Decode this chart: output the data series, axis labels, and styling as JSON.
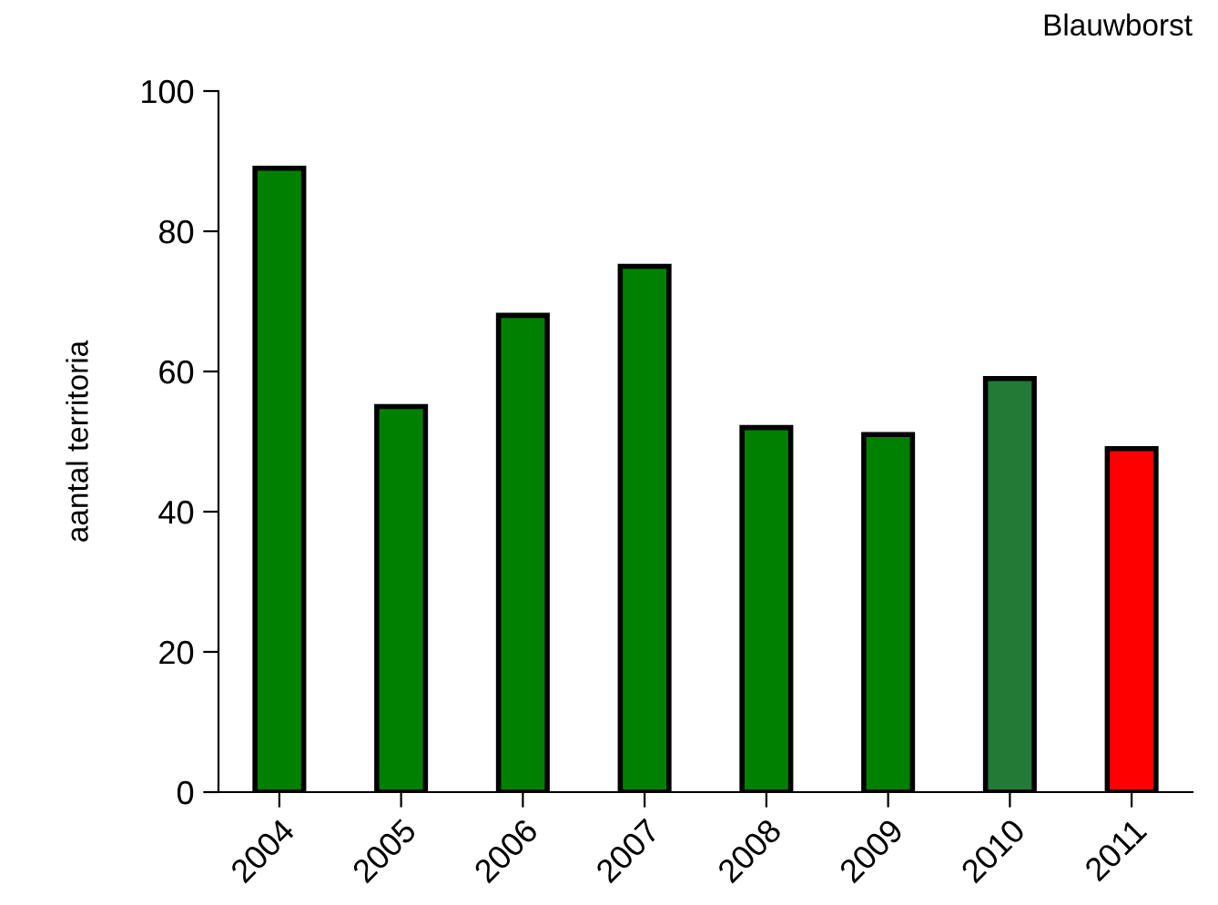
{
  "chart_data": {
    "type": "bar",
    "title": "Blauwborst",
    "ylabel": "aantal territoria",
    "categories": [
      "2004",
      "2005",
      "2006",
      "2007",
      "2008",
      "2009",
      "2010",
      "2011"
    ],
    "values": [
      89,
      55,
      68,
      75,
      52,
      51,
      59,
      49
    ],
    "colors": [
      "#008000",
      "#008000",
      "#008000",
      "#008000",
      "#008000",
      "#008000",
      "#237a37",
      "#ff0000"
    ],
    "ylim": [
      0,
      100
    ],
    "yticks": [
      0,
      20,
      40,
      60,
      80,
      100
    ],
    "grid": false,
    "legend": false
  }
}
